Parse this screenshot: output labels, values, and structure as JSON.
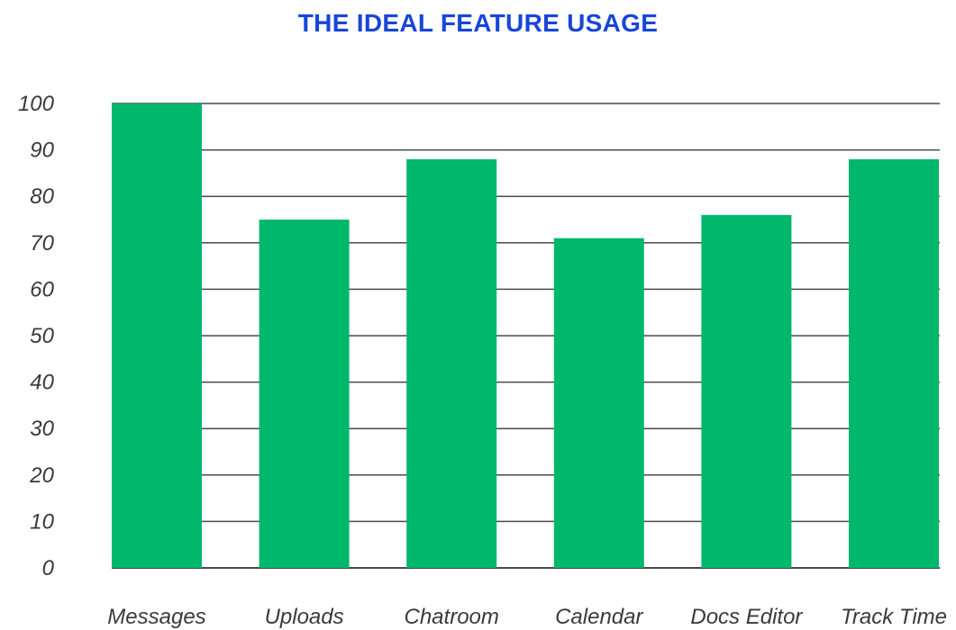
{
  "chart_data": {
    "type": "bar",
    "title": "THE IDEAL FEATURE USAGE",
    "xlabel": "",
    "ylabel": "",
    "categories": [
      "Messages",
      "Uploads",
      "Chatroom",
      "Calendar",
      "Docs Editor",
      "Track Time"
    ],
    "values": [
      100,
      75,
      88,
      71,
      76,
      88
    ],
    "ylim": [
      0,
      100
    ],
    "yticks": [
      "0",
      "10",
      "20",
      "30",
      "40",
      "50",
      "60",
      "70",
      "80",
      "90",
      "100"
    ],
    "grid": true,
    "legend": "none",
    "colors": {
      "bar": "#00b86b",
      "grid": "#4a4a4a",
      "title": "#1746d8"
    }
  }
}
